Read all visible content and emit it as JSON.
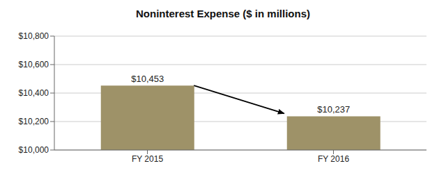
{
  "chart_data": {
    "type": "bar",
    "title": "Noninterest Expense ($ in millions)",
    "categories": [
      "FY 2015",
      "FY 2016"
    ],
    "values": [
      10453,
      10237
    ],
    "value_labels": [
      "$10,453",
      "$10,237"
    ],
    "data_labels": true,
    "color": "#9e9268",
    "ylim": [
      10000,
      10800
    ],
    "yticks": [
      {
        "value": 10000,
        "label": "$10,000"
      },
      {
        "value": 10200,
        "label": "$10,200"
      },
      {
        "value": 10400,
        "label": "$10,400"
      },
      {
        "value": 10600,
        "label": "$10,600"
      },
      {
        "value": 10800,
        "label": "$10,800"
      }
    ],
    "grid": true
  }
}
